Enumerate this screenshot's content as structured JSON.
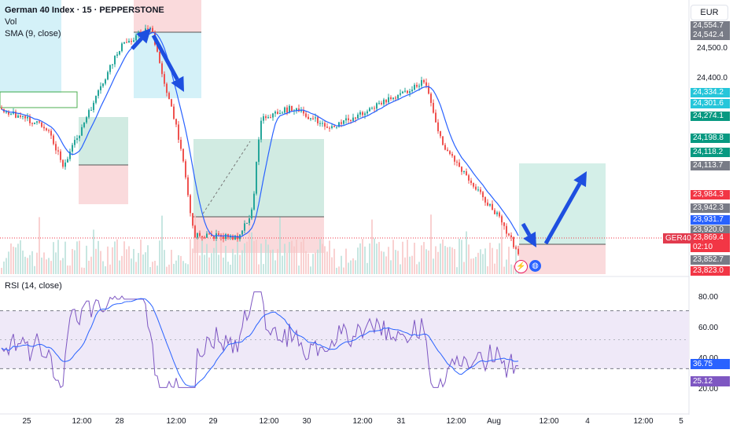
{
  "header": {
    "title": "German 40 Index · 15 · PEPPERSTONE",
    "vol_label": "Vol",
    "sma_label": "SMA (9, close)",
    "currency": "EUR"
  },
  "price_axis": {
    "ticks": [
      "24,500.0",
      "24,400.0"
    ],
    "labels": [
      {
        "text": "24,554.7",
        "color": "#787b86"
      },
      {
        "text": "24,542.4",
        "color": "#787b86"
      },
      {
        "text": "24,334.2",
        "color": "#26c6da"
      },
      {
        "text": "24,301.6",
        "color": "#26c6da"
      },
      {
        "text": "24,274.1",
        "color": "#089981"
      },
      {
        "text": "24,198.8",
        "color": "#089981"
      },
      {
        "text": "24,118.2",
        "color": "#089981"
      },
      {
        "text": "24,113.7",
        "color": "#787b86"
      },
      {
        "text": "23,984.3",
        "color": "#f23645"
      },
      {
        "text": "23,942.3",
        "color": "#787b86"
      },
      {
        "text": "23,931.7",
        "color": "#2962ff"
      },
      {
        "text": "23,920.0",
        "color": "#787b86"
      },
      {
        "text": "23,869.4",
        "color": "#f23645"
      },
      {
        "text": "02:10",
        "color": "#f23645"
      },
      {
        "text": "23,852.7",
        "color": "#787b86"
      },
      {
        "text": "23,823.0",
        "color": "#f23645"
      }
    ],
    "symbol_tag": "GER40"
  },
  "rsi": {
    "title": "RSI (14, close)",
    "ticks": [
      "80.00",
      "60.00",
      "40.00",
      "20.00"
    ],
    "labels": [
      {
        "text": "36.75",
        "color": "#2962ff"
      },
      {
        "text": "25.12",
        "color": "#7e57c2"
      }
    ]
  },
  "time_axis": [
    "25",
    "12:00",
    "28",
    "12:00",
    "29",
    "12:00",
    "30",
    "12:00",
    "31",
    "12:00",
    "Aug",
    "12:00",
    "4",
    "12:00",
    "5"
  ],
  "icons": {
    "flash": "flash-icon",
    "globe": "globe-icon"
  },
  "colors": {
    "up": "#26a69a",
    "down": "#ef5350",
    "sma": "#2962ff",
    "rsi": "#7e57c2",
    "arrow": "#1e4fe0"
  },
  "chart_data": {
    "type": "candlestick",
    "symbol": "German 40 Index",
    "interval": "15",
    "x": [
      "25",
      "28",
      "29",
      "30",
      "31",
      "Aug",
      "4",
      "5"
    ],
    "ylim": [
      23823.0,
      24554.7
    ],
    "price_path": [
      {
        "t": "25 00:00",
        "v": 24300
      },
      {
        "t": "25 12:00",
        "v": 24240
      },
      {
        "t": "25 18:00",
        "v": 24130
      },
      {
        "t": "28 00:00",
        "v": 24480
      },
      {
        "t": "28 03:00",
        "v": 24540
      },
      {
        "t": "28 12:00",
        "v": 24180
      },
      {
        "t": "28 18:00",
        "v": 23930
      },
      {
        "t": "29 06:00",
        "v": 23920
      },
      {
        "t": "29 12:00",
        "v": 24000
      },
      {
        "t": "29 18:00",
        "v": 24270
      },
      {
        "t": "30 06:00",
        "v": 24300
      },
      {
        "t": "30 18:00",
        "v": 24240
      },
      {
        "t": "31 06:00",
        "v": 24310
      },
      {
        "t": "31 12:00",
        "v": 24380
      },
      {
        "t": "31 18:00",
        "v": 24200
      },
      {
        "t": "Aug 06:00",
        "v": 23990
      },
      {
        "t": "Aug 10:00",
        "v": 23869.4
      }
    ],
    "last_price": 23869.4,
    "countdown": "02:10",
    "rsi_last": [
      36.75,
      25.12
    ],
    "rsi_levels": [
      70,
      30
    ]
  }
}
